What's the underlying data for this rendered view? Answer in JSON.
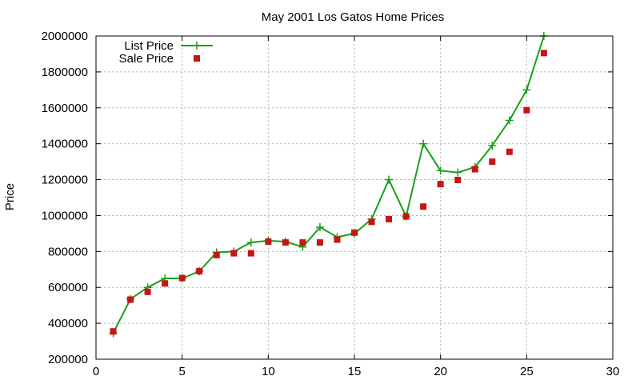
{
  "chart_data": {
    "type": "line",
    "title": "May 2001 Los Gatos Home Prices",
    "xlabel": "",
    "ylabel": "Price",
    "xlim": [
      0,
      30
    ],
    "ylim": [
      200000,
      2000000
    ],
    "xticks": [
      0,
      5,
      10,
      15,
      20,
      25,
      30
    ],
    "yticks": [
      200000,
      400000,
      600000,
      800000,
      1000000,
      1200000,
      1400000,
      1600000,
      1800000,
      2000000
    ],
    "grid": true,
    "legend_position": "top-left",
    "series": [
      {
        "name": "List Price",
        "style": "line+cross",
        "color": "#1a9e1a",
        "x": [
          1,
          2,
          3,
          4,
          5,
          6,
          7,
          8,
          9,
          10,
          11,
          12,
          13,
          14,
          15,
          16,
          17,
          18,
          19,
          20,
          21,
          22,
          23,
          24,
          25,
          26
        ],
        "y": [
          345000,
          535000,
          600000,
          650000,
          650000,
          690000,
          795000,
          800000,
          850000,
          860000,
          855000,
          825000,
          935000,
          880000,
          900000,
          980000,
          1200000,
          995000,
          1400000,
          1250000,
          1240000,
          1270000,
          1390000,
          1530000,
          1700000,
          2000000
        ]
      },
      {
        "name": "Sale Price",
        "style": "square",
        "color": "#c81414",
        "x": [
          1,
          2,
          3,
          4,
          5,
          6,
          7,
          8,
          9,
          10,
          11,
          12,
          13,
          14,
          15,
          16,
          17,
          18,
          19,
          20,
          21,
          22,
          23,
          24,
          25,
          26
        ],
        "y": [
          355000,
          532000,
          575000,
          622000,
          652000,
          690000,
          780000,
          790000,
          790000,
          855000,
          850000,
          850000,
          850000,
          866000,
          905000,
          965000,
          980000,
          995000,
          1050000,
          1175000,
          1198000,
          1258000,
          1300000,
          1355000,
          1587000,
          1905000
        ]
      }
    ]
  }
}
